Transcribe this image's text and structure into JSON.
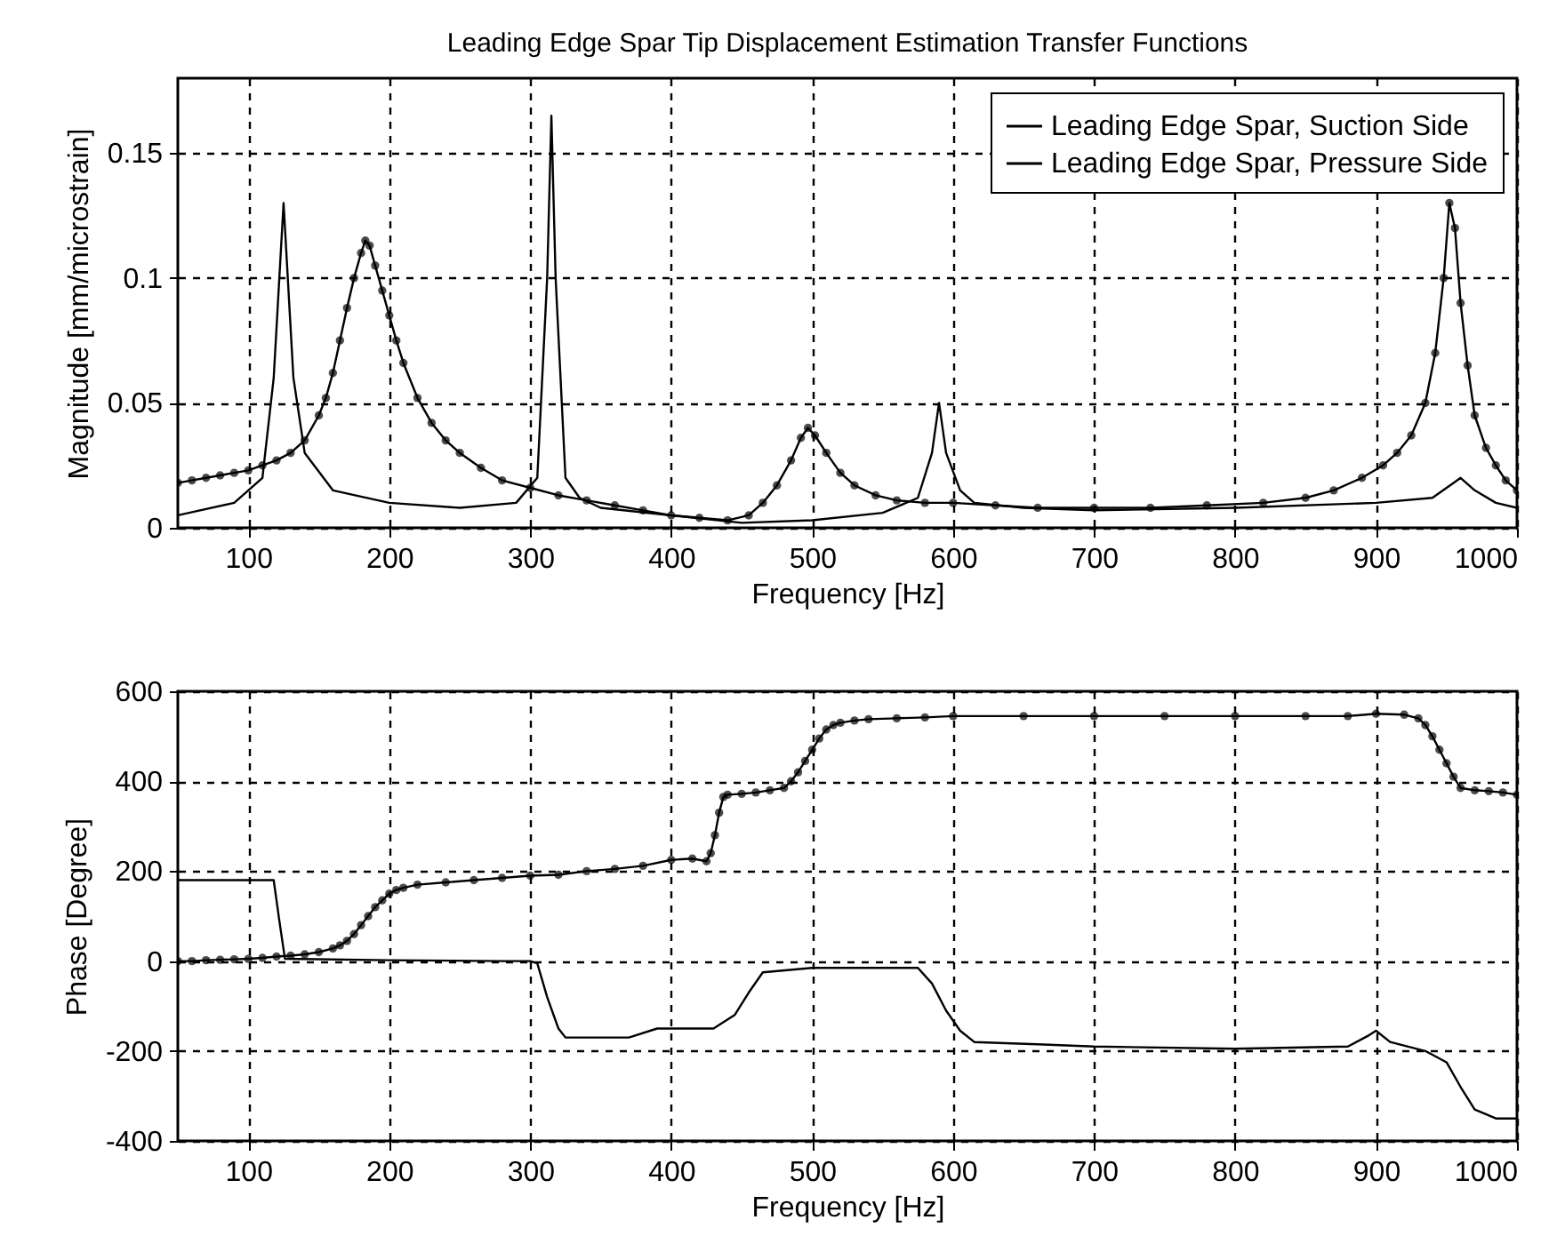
{
  "chart_data": [
    {
      "type": "line",
      "title": "Leading Edge Spar Tip Displacement Estimation Transfer Functions",
      "xlabel": "Frequency [Hz]",
      "ylabel": "Magnitude [mm/microstrain]",
      "xlim": [
        50,
        1000
      ],
      "ylim": [
        0,
        0.18
      ],
      "xticks": [
        100,
        200,
        300,
        400,
        500,
        600,
        700,
        800,
        900,
        1000
      ],
      "yticks": [
        0,
        0.05,
        0.1,
        0.15
      ],
      "grid": true,
      "legend": "top right",
      "line_style": "solid",
      "series": [
        {
          "name": "Leading Edge Spar, Suction Side",
          "color": "#000000",
          "x": [
            50,
            90,
            110,
            118,
            125,
            132,
            140,
            160,
            200,
            250,
            290,
            305,
            312,
            315,
            318,
            325,
            335,
            350,
            400,
            450,
            500,
            550,
            575,
            585,
            590,
            595,
            605,
            615,
            650,
            700,
            800,
            900,
            940,
            955,
            960,
            970,
            985,
            1000
          ],
          "values": [
            0.005,
            0.01,
            0.02,
            0.06,
            0.13,
            0.06,
            0.03,
            0.015,
            0.01,
            0.008,
            0.01,
            0.02,
            0.1,
            0.165,
            0.1,
            0.02,
            0.012,
            0.008,
            0.005,
            0.002,
            0.003,
            0.006,
            0.012,
            0.03,
            0.05,
            0.03,
            0.015,
            0.01,
            0.008,
            0.007,
            0.008,
            0.01,
            0.012,
            0.018,
            0.02,
            0.015,
            0.01,
            0.008
          ]
        },
        {
          "name": "Leading Edge Spar, Pressure Side",
          "color": "#000000",
          "marker": "circle",
          "x": [
            50,
            60,
            70,
            80,
            90,
            100,
            110,
            120,
            130,
            140,
            150,
            155,
            160,
            165,
            170,
            175,
            180,
            183,
            186,
            190,
            195,
            200,
            205,
            210,
            220,
            230,
            240,
            250,
            265,
            280,
            300,
            320,
            340,
            360,
            380,
            400,
            420,
            440,
            455,
            465,
            475,
            485,
            492,
            497,
            502,
            510,
            520,
            530,
            545,
            560,
            580,
            600,
            630,
            660,
            700,
            740,
            780,
            820,
            850,
            870,
            890,
            905,
            915,
            925,
            935,
            942,
            948,
            952,
            956,
            960,
            965,
            970,
            978,
            985,
            992,
            1000
          ],
          "values": [
            0.018,
            0.019,
            0.02,
            0.021,
            0.022,
            0.023,
            0.025,
            0.027,
            0.03,
            0.035,
            0.045,
            0.052,
            0.062,
            0.075,
            0.088,
            0.1,
            0.11,
            0.115,
            0.113,
            0.105,
            0.095,
            0.085,
            0.075,
            0.066,
            0.052,
            0.042,
            0.035,
            0.03,
            0.024,
            0.019,
            0.016,
            0.013,
            0.011,
            0.009,
            0.007,
            0.005,
            0.004,
            0.003,
            0.005,
            0.01,
            0.017,
            0.027,
            0.036,
            0.04,
            0.037,
            0.03,
            0.022,
            0.017,
            0.013,
            0.011,
            0.01,
            0.01,
            0.009,
            0.008,
            0.008,
            0.008,
            0.009,
            0.01,
            0.012,
            0.015,
            0.02,
            0.025,
            0.03,
            0.037,
            0.05,
            0.07,
            0.1,
            0.13,
            0.12,
            0.09,
            0.065,
            0.045,
            0.032,
            0.025,
            0.019,
            0.015
          ]
        }
      ]
    },
    {
      "type": "line",
      "xlabel": "Frequency [Hz]",
      "ylabel": "Phase [Degree]",
      "xlim": [
        50,
        1000
      ],
      "ylim": [
        -400,
        600
      ],
      "xticks": [
        100,
        200,
        300,
        400,
        500,
        600,
        700,
        800,
        900,
        1000
      ],
      "yticks": [
        -400,
        -200,
        0,
        200,
        400,
        600
      ],
      "grid": true,
      "line_style": "solid",
      "series": [
        {
          "color": "#000000",
          "x": [
            50,
            118,
            122,
            126,
            200,
            280,
            300,
            305,
            312,
            320,
            325,
            370,
            390,
            430,
            445,
            455,
            465,
            500,
            575,
            585,
            595,
            605,
            615,
            660,
            700,
            800,
            880,
            895,
            900,
            910,
            935,
            950,
            960,
            970,
            985,
            1000
          ],
          "values": [
            180,
            180,
            90,
            5,
            2,
            0,
            0,
            -5,
            -80,
            -150,
            -170,
            -170,
            -150,
            -150,
            -120,
            -70,
            -25,
            -15,
            -15,
            -50,
            -110,
            -155,
            -180,
            -185,
            -190,
            -195,
            -190,
            -165,
            -155,
            -180,
            -200,
            -225,
            -280,
            -330,
            -350,
            -350
          ]
        },
        {
          "color": "#000000",
          "marker": "circle",
          "x": [
            50,
            60,
            70,
            80,
            90,
            100,
            110,
            120,
            130,
            140,
            150,
            160,
            165,
            170,
            175,
            180,
            185,
            190,
            195,
            200,
            205,
            210,
            220,
            240,
            260,
            280,
            300,
            320,
            340,
            360,
            380,
            400,
            415,
            425,
            428,
            431,
            434,
            437,
            440,
            450,
            460,
            470,
            480,
            485,
            490,
            495,
            500,
            505,
            510,
            515,
            520,
            530,
            540,
            560,
            580,
            600,
            650,
            700,
            750,
            800,
            850,
            880,
            900,
            920,
            930,
            935,
            940,
            945,
            950,
            955,
            960,
            970,
            980,
            990,
            1000
          ],
          "values": [
            0,
            0,
            2,
            3,
            4,
            5,
            7,
            10,
            12,
            15,
            20,
            28,
            35,
            45,
            60,
            80,
            100,
            120,
            135,
            150,
            158,
            163,
            170,
            175,
            180,
            185,
            190,
            192,
            200,
            205,
            212,
            225,
            228,
            222,
            240,
            280,
            330,
            365,
            370,
            372,
            375,
            380,
            385,
            400,
            420,
            445,
            470,
            495,
            515,
            525,
            530,
            535,
            538,
            540,
            542,
            545,
            545,
            545,
            545,
            545,
            545,
            545,
            550,
            548,
            540,
            525,
            500,
            470,
            440,
            410,
            385,
            380,
            378,
            375,
            370
          ]
        }
      ]
    }
  ]
}
